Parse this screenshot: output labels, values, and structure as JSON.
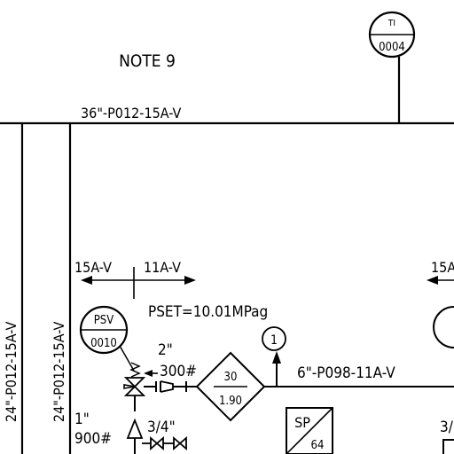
{
  "labels": {
    "note": "NOTE 9",
    "main_line": "36\"-P012-15A-V",
    "vertical_line_left": "24\"-P012-15A-V",
    "vertical_line_right": "24\"-P012-15A-V",
    "spec_break_left": "15A-V",
    "spec_break_right": "11A-V",
    "spec_break_far_right": "15A",
    "pset": "PSET=10.01MPag",
    "inlet_size": "2\"",
    "inlet_rating": "300#",
    "outlet_size": "1\"",
    "outlet_rating": "900#",
    "drain_size": "3/4\"",
    "right_edge_size": "3/",
    "small_line": "6\"-P098-11A-V"
  },
  "instruments": {
    "ti": {
      "tag": "TI",
      "number": "0004"
    },
    "psv": {
      "tag": "PSV",
      "number": "0010"
    }
  },
  "diamond": {
    "top": "30",
    "bottom": "1.90"
  },
  "sp_box": {
    "tag": "SP",
    "number": "64"
  },
  "note_flag": "1"
}
